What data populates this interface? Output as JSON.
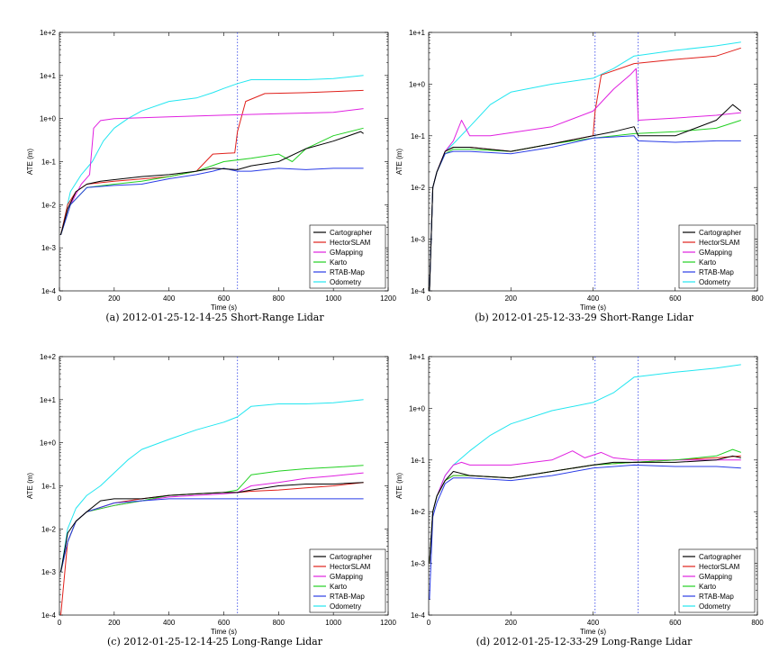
{
  "series_names": [
    "Cartographer",
    "HectorSLAM",
    "GMapping",
    "Karto",
    "RTAB-Map",
    "Odometry"
  ],
  "series_colors": [
    "#000000",
    "#e0201b",
    "#e020e0",
    "#22d022",
    "#2a3ce6",
    "#22e6f0"
  ],
  "chart_data": [
    {
      "type": "line",
      "caption": "(a) 2012-01-25-12-14-25 Short-Range Lidar",
      "xlabel": "Time (s)",
      "ylabel": "ATE (m)",
      "xlim": [
        0,
        1200
      ],
      "xticks": [
        "0",
        "200",
        "400",
        "600",
        "800",
        "1000",
        "1200"
      ],
      "xtick_values": [
        0,
        200,
        400,
        600,
        800,
        1000,
        1200
      ],
      "ylim": [
        -4,
        2
      ],
      "yscale": "log",
      "yticks": [
        "1e-4",
        "1e-3",
        "1e-2",
        "1e-1",
        "1e+0",
        "1e+1",
        "1e+2"
      ],
      "ytick_values": [
        -4,
        -3,
        -2,
        -1,
        0,
        1,
        2
      ],
      "vlines": [
        650
      ],
      "legend": "bottom-right",
      "series": [
        {
          "name": "Cartographer",
          "x": [
            5,
            30,
            60,
            100,
            150,
            300,
            400,
            500,
            560,
            650,
            700,
            800,
            900,
            1000,
            1100,
            1110
          ],
          "y": [
            0.002,
            0.008,
            0.02,
            0.03,
            0.035,
            0.045,
            0.05,
            0.06,
            0.07,
            0.065,
            0.08,
            0.1,
            0.2,
            0.3,
            0.5,
            0.45
          ]
        },
        {
          "name": "HectorSLAM",
          "x": [
            5,
            30,
            60,
            100,
            200,
            400,
            500,
            560,
            640,
            650,
            680,
            750,
            900,
            1110
          ],
          "y": [
            0.002,
            0.01,
            0.02,
            0.03,
            0.035,
            0.045,
            0.06,
            0.15,
            0.16,
            0.5,
            2.5,
            3.8,
            4.0,
            4.5
          ]
        },
        {
          "name": "GMapping",
          "x": [
            5,
            40,
            80,
            110,
            125,
            150,
            200,
            400,
            600,
            800,
            1000,
            1110
          ],
          "y": [
            0.002,
            0.01,
            0.03,
            0.05,
            0.6,
            0.9,
            1.0,
            1.1,
            1.2,
            1.3,
            1.4,
            1.7
          ]
        },
        {
          "name": "Karto",
          "x": [
            5,
            40,
            100,
            200,
            300,
            400,
            500,
            600,
            700,
            800,
            850,
            900,
            1000,
            1110
          ],
          "y": [
            0.002,
            0.01,
            0.025,
            0.03,
            0.035,
            0.045,
            0.06,
            0.1,
            0.12,
            0.15,
            0.1,
            0.2,
            0.4,
            0.6
          ]
        },
        {
          "name": "RTAB-Map",
          "x": [
            5,
            40,
            100,
            200,
            300,
            400,
            500,
            560,
            600,
            650,
            700,
            800,
            900,
            1000,
            1110
          ],
          "y": [
            0.002,
            0.01,
            0.025,
            0.028,
            0.03,
            0.04,
            0.05,
            0.06,
            0.07,
            0.06,
            0.06,
            0.07,
            0.065,
            0.07,
            0.07
          ]
        },
        {
          "name": "Odometry",
          "x": [
            5,
            40,
            80,
            120,
            160,
            200,
            250,
            300,
            400,
            500,
            560,
            600,
            650,
            700,
            800,
            900,
            1000,
            1110
          ],
          "y": [
            0.002,
            0.02,
            0.05,
            0.1,
            0.3,
            0.6,
            1.0,
            1.5,
            2.5,
            3.0,
            4.0,
            5.0,
            6.5,
            8.0,
            8.0,
            8.0,
            8.5,
            10.0
          ]
        }
      ]
    },
    {
      "type": "line",
      "caption": "(b) 2012-01-25-12-33-29 Short-Range Lidar",
      "xlabel": "Time (s)",
      "ylabel": "ATE (m)",
      "xlim": [
        0,
        800
      ],
      "xticks": [
        "0",
        "200",
        "400",
        "600",
        "800"
      ],
      "xtick_values": [
        0,
        200,
        400,
        600,
        800
      ],
      "ylim": [
        -4,
        1
      ],
      "yscale": "log",
      "yticks": [
        "1e-4",
        "1e-3",
        "1e-2",
        "1e-1",
        "1e+0",
        "1e+1"
      ],
      "ytick_values": [
        -4,
        -3,
        -2,
        -1,
        0,
        1
      ],
      "vlines": [
        405,
        510
      ],
      "legend": "bottom-right",
      "series": [
        {
          "name": "Cartographer",
          "x": [
            2,
            10,
            20,
            40,
            60,
            100,
            200,
            300,
            400,
            450,
            500,
            510,
            600,
            700,
            740,
            760
          ],
          "y": [
            0.0001,
            0.01,
            0.02,
            0.05,
            0.06,
            0.06,
            0.05,
            0.07,
            0.1,
            0.12,
            0.15,
            0.1,
            0.1,
            0.2,
            0.4,
            0.3
          ]
        },
        {
          "name": "HectorSLAM",
          "x": [
            2,
            10,
            20,
            40,
            60,
            100,
            200,
            300,
            400,
            405,
            420,
            500,
            600,
            700,
            760
          ],
          "y": [
            0.0001,
            0.01,
            0.02,
            0.05,
            0.06,
            0.06,
            0.05,
            0.07,
            0.1,
            0.3,
            1.5,
            2.5,
            3.0,
            3.5,
            5.0
          ]
        },
        {
          "name": "GMapping",
          "x": [
            2,
            10,
            20,
            40,
            60,
            80,
            100,
            150,
            300,
            400,
            450,
            490,
            505,
            510,
            600,
            700,
            760
          ],
          "y": [
            0.0001,
            0.01,
            0.02,
            0.05,
            0.08,
            0.2,
            0.1,
            0.1,
            0.15,
            0.3,
            0.8,
            1.5,
            2.0,
            0.2,
            0.22,
            0.25,
            0.28
          ]
        },
        {
          "name": "Karto",
          "x": [
            2,
            10,
            20,
            40,
            60,
            100,
            200,
            300,
            400,
            500,
            600,
            700,
            760
          ],
          "y": [
            0.0001,
            0.01,
            0.02,
            0.045,
            0.055,
            0.055,
            0.05,
            0.07,
            0.09,
            0.11,
            0.12,
            0.14,
            0.2
          ]
        },
        {
          "name": "RTAB-Map",
          "x": [
            2,
            10,
            20,
            40,
            60,
            100,
            200,
            300,
            400,
            500,
            510,
            600,
            700,
            760
          ],
          "y": [
            0.0001,
            0.01,
            0.02,
            0.045,
            0.05,
            0.05,
            0.045,
            0.06,
            0.09,
            0.1,
            0.08,
            0.075,
            0.08,
            0.08
          ]
        },
        {
          "name": "Odometry",
          "x": [
            2,
            10,
            20,
            40,
            60,
            100,
            150,
            200,
            300,
            400,
            450,
            500,
            600,
            700,
            760
          ],
          "y": [
            0.0001,
            0.01,
            0.02,
            0.05,
            0.07,
            0.15,
            0.4,
            0.7,
            1.0,
            1.3,
            2.0,
            3.5,
            4.5,
            5.5,
            6.5
          ]
        }
      ]
    },
    {
      "type": "line",
      "caption": "(c) 2012-01-25-12-14-25 Long-Range Lidar",
      "xlabel": "Time (s)",
      "ylabel": "ATE (m)",
      "xlim": [
        0,
        1200
      ],
      "xticks": [
        "0",
        "200",
        "400",
        "600",
        "800",
        "1000",
        "1200"
      ],
      "xtick_values": [
        0,
        200,
        400,
        600,
        800,
        1000,
        1200
      ],
      "ylim": [
        -4,
        2
      ],
      "yscale": "log",
      "yticks": [
        "1e-4",
        "1e-3",
        "1e-2",
        "1e-1",
        "1e+0",
        "1e+1",
        "1e+2"
      ],
      "ytick_values": [
        -4,
        -3,
        -2,
        -1,
        0,
        1,
        2
      ],
      "vlines": [
        650
      ],
      "legend": "bottom-right",
      "series": [
        {
          "name": "Cartographer",
          "x": [
            5,
            30,
            60,
            100,
            150,
            200,
            300,
            400,
            500,
            600,
            650,
            700,
            800,
            900,
            1000,
            1110
          ],
          "y": [
            0.001,
            0.008,
            0.015,
            0.025,
            0.045,
            0.05,
            0.05,
            0.06,
            0.065,
            0.07,
            0.07,
            0.08,
            0.1,
            0.11,
            0.11,
            0.12
          ]
        },
        {
          "name": "HectorSLAM",
          "x": [
            5,
            30,
            60,
            100,
            200,
            300,
            400,
            500,
            600,
            650,
            700,
            800,
            900,
            1000,
            1110
          ],
          "y": [
            0.0001,
            0.005,
            0.015,
            0.025,
            0.04,
            0.05,
            0.06,
            0.065,
            0.07,
            0.07,
            0.075,
            0.08,
            0.09,
            0.1,
            0.12
          ]
        },
        {
          "name": "GMapping",
          "x": [
            5,
            30,
            60,
            100,
            200,
            300,
            400,
            500,
            600,
            650,
            700,
            800,
            900,
            1000,
            1110
          ],
          "y": [
            0.001,
            0.005,
            0.015,
            0.025,
            0.035,
            0.045,
            0.055,
            0.06,
            0.065,
            0.07,
            0.1,
            0.12,
            0.15,
            0.17,
            0.2
          ]
        },
        {
          "name": "Karto",
          "x": [
            5,
            30,
            60,
            100,
            200,
            300,
            400,
            500,
            600,
            650,
            700,
            800,
            900,
            1000,
            1110
          ],
          "y": [
            0.001,
            0.005,
            0.015,
            0.025,
            0.035,
            0.045,
            0.06,
            0.065,
            0.07,
            0.08,
            0.18,
            0.22,
            0.25,
            0.27,
            0.3
          ]
        },
        {
          "name": "RTAB-Map",
          "x": [
            5,
            30,
            60,
            100,
            200,
            300,
            400,
            500,
            600,
            650,
            700,
            800,
            900,
            1000,
            1110
          ],
          "y": [
            0.001,
            0.005,
            0.015,
            0.025,
            0.04,
            0.045,
            0.05,
            0.05,
            0.05,
            0.05,
            0.05,
            0.05,
            0.05,
            0.05,
            0.05
          ]
        },
        {
          "name": "Odometry",
          "x": [
            5,
            30,
            60,
            100,
            150,
            200,
            250,
            300,
            400,
            500,
            600,
            650,
            700,
            800,
            900,
            1000,
            1110
          ],
          "y": [
            0.001,
            0.01,
            0.03,
            0.06,
            0.1,
            0.2,
            0.4,
            0.7,
            1.2,
            2.0,
            3.0,
            4.0,
            7.0,
            8.0,
            8.0,
            8.5,
            10.0
          ]
        }
      ]
    },
    {
      "type": "line",
      "caption": "(d) 2012-01-25-12-33-29 Long-Range Lidar",
      "xlabel": "Time (s)",
      "ylabel": "ATE (m)",
      "xlim": [
        0,
        800
      ],
      "xticks": [
        "0",
        "200",
        "400",
        "600",
        "800"
      ],
      "xtick_values": [
        0,
        200,
        400,
        600,
        800
      ],
      "ylim": [
        -4,
        1
      ],
      "yscale": "log",
      "yticks": [
        "1e-4",
        "1e-3",
        "1e-2",
        "1e-1",
        "1e+0",
        "1e+1"
      ],
      "ytick_values": [
        -4,
        -3,
        -2,
        -1,
        0,
        1
      ],
      "vlines": [
        405,
        510
      ],
      "legend": "bottom-right",
      "series": [
        {
          "name": "Cartographer",
          "x": [
            2,
            10,
            20,
            40,
            60,
            100,
            200,
            300,
            400,
            450,
            500,
            600,
            700,
            740,
            760
          ],
          "y": [
            0.001,
            0.01,
            0.02,
            0.04,
            0.06,
            0.05,
            0.045,
            0.06,
            0.08,
            0.09,
            0.09,
            0.09,
            0.1,
            0.12,
            0.11
          ]
        },
        {
          "name": "HectorSLAM",
          "x": [
            2,
            10,
            20,
            40,
            60,
            100,
            200,
            300,
            400,
            500,
            600,
            700,
            760
          ],
          "y": [
            0.001,
            0.01,
            0.02,
            0.04,
            0.05,
            0.05,
            0.045,
            0.06,
            0.08,
            0.09,
            0.1,
            0.11,
            0.12
          ]
        },
        {
          "name": "GMapping",
          "x": [
            2,
            10,
            20,
            40,
            60,
            80,
            100,
            200,
            300,
            350,
            380,
            420,
            450,
            500,
            600,
            700,
            760
          ],
          "y": [
            0.001,
            0.01,
            0.02,
            0.05,
            0.08,
            0.09,
            0.08,
            0.08,
            0.1,
            0.15,
            0.11,
            0.14,
            0.11,
            0.1,
            0.1,
            0.1,
            0.1
          ]
        },
        {
          "name": "Karto",
          "x": [
            2,
            10,
            20,
            40,
            60,
            100,
            200,
            300,
            400,
            500,
            600,
            700,
            740,
            760
          ],
          "y": [
            0.001,
            0.01,
            0.02,
            0.04,
            0.05,
            0.05,
            0.045,
            0.06,
            0.08,
            0.09,
            0.1,
            0.12,
            0.16,
            0.14
          ]
        },
        {
          "name": "RTAB-Map",
          "x": [
            2,
            10,
            20,
            40,
            60,
            100,
            200,
            300,
            400,
            500,
            600,
            700,
            760
          ],
          "y": [
            0.0002,
            0.008,
            0.015,
            0.035,
            0.045,
            0.045,
            0.04,
            0.05,
            0.07,
            0.08,
            0.075,
            0.075,
            0.07
          ]
        },
        {
          "name": "Odometry",
          "x": [
            2,
            10,
            20,
            40,
            60,
            100,
            150,
            200,
            300,
            400,
            450,
            500,
            600,
            700,
            760
          ],
          "y": [
            0.001,
            0.01,
            0.02,
            0.05,
            0.08,
            0.15,
            0.3,
            0.5,
            0.9,
            1.3,
            2.0,
            4.0,
            5.0,
            6.0,
            7.0
          ]
        }
      ]
    }
  ]
}
